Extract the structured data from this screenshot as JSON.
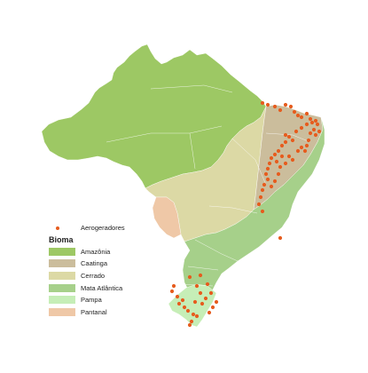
{
  "legend": {
    "points_label": "Aerogeradores",
    "title": "Bioma",
    "items": [
      {
        "id": "amazonia",
        "label": "Amazônia",
        "color": "#9dc864"
      },
      {
        "id": "caatinga",
        "label": "Caatinga",
        "color": "#cbbd9c"
      },
      {
        "id": "cerrado",
        "label": "Cerrado",
        "color": "#dcd9a5"
      },
      {
        "id": "mata",
        "label": "Mata Atlântica",
        "color": "#a6d08a"
      },
      {
        "id": "pampa",
        "label": "Pampa",
        "color": "#c6eeb7"
      },
      {
        "id": "pantanal",
        "label": "Pantanal",
        "color": "#efc8a7"
      }
    ]
  },
  "colors": {
    "point": "#e65c1e",
    "boundary": "#ffffff"
  }
}
